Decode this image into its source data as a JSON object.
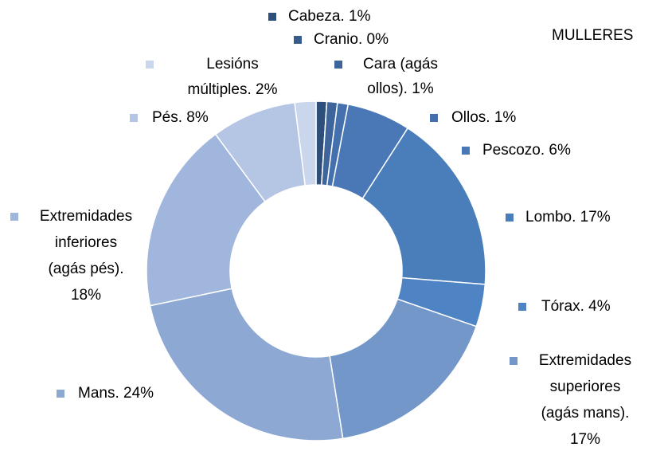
{
  "chart_data": {
    "type": "donut",
    "title": "MULLERES",
    "values": [
      1,
      0,
      1,
      1,
      6,
      17,
      4,
      17,
      24,
      18,
      8,
      2
    ],
    "value_labels": [
      [
        "Cabeza. 1%"
      ],
      [
        "Cranio. 0%"
      ],
      [
        "Cara (agás",
        "ollos). 1%"
      ],
      [
        "Ollos. 1%"
      ],
      [
        "Pescozo. 6%"
      ],
      [
        "Lombo. 17%"
      ],
      [
        "Tórax. 4%"
      ],
      [
        "Extremidades",
        "superiores",
        "(agás mans).",
        "17%"
      ],
      [
        "Mans. 24%"
      ],
      [
        "Extremidades",
        "inferiores",
        "(agás pés).",
        "18%"
      ],
      [
        "Pés. 8%"
      ],
      [
        "Lesións",
        "múltiples. 2%"
      ]
    ],
    "colors": [
      "#2e4f7a",
      "#375c8c",
      "#3d659c",
      "#4470ad",
      "#4a78b7",
      "#4a7ebb",
      "#4f84c4",
      "#7397c9",
      "#8ca8d3",
      "#a0b6dc",
      "#b4c6e4",
      "#c9d6ec"
    ]
  }
}
